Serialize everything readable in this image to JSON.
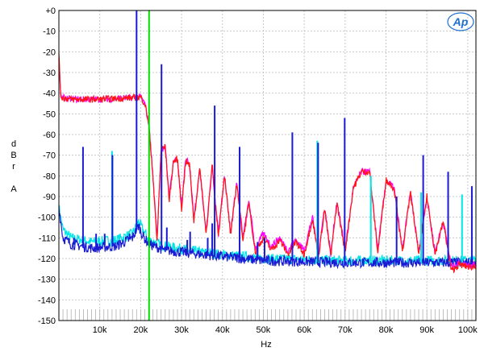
{
  "chart_data": {
    "type": "line",
    "title": "",
    "xlabel": "Hz",
    "ylabel_lines": [
      "d",
      "B",
      "r",
      "",
      "A"
    ],
    "xlim": [
      0,
      102000
    ],
    "ylim": [
      -150,
      0
    ],
    "grid": true,
    "y_ticks": [
      0,
      -10,
      -20,
      -30,
      -40,
      -50,
      -60,
      -70,
      -80,
      -90,
      -100,
      -110,
      -120,
      -130,
      -140,
      -150
    ],
    "y_tick_labels": [
      "+0",
      "-10",
      "-20",
      "-30",
      "-40",
      "-50",
      "-60",
      "-70",
      "-80",
      "-90",
      "-100",
      "-110",
      "-120",
      "-130",
      "-140",
      "-150"
    ],
    "x_ticks": [
      10000,
      20000,
      30000,
      40000,
      50000,
      60000,
      70000,
      80000,
      90000,
      100000
    ],
    "x_tick_labels": [
      "10k",
      "20k",
      "30k",
      "40k",
      "50k",
      "60k",
      "70k",
      "80k",
      "90k",
      "100k"
    ],
    "marker_x": 22050,
    "marker_color": "#00dd00",
    "logo_text": "Ap",
    "series": [
      {
        "color": "#00e5e5",
        "points": [
          [
            0,
            -95
          ],
          [
            1000,
            -106
          ],
          [
            3000,
            -110
          ],
          [
            8000,
            -112
          ],
          [
            14000,
            -111
          ],
          [
            18000,
            -108
          ],
          [
            19500,
            -102
          ],
          [
            20500,
            -106
          ],
          [
            22000,
            -111
          ],
          [
            26000,
            -114
          ],
          [
            35000,
            -117
          ],
          [
            50000,
            -120
          ],
          [
            70000,
            -121
          ],
          [
            102000,
            -121
          ]
        ]
      },
      {
        "color": "#1a1ad6",
        "points": [
          [
            0,
            -95
          ],
          [
            1000,
            -110
          ],
          [
            3000,
            -113
          ],
          [
            8000,
            -115
          ],
          [
            14000,
            -114
          ],
          [
            18000,
            -110
          ],
          [
            19500,
            -104
          ],
          [
            20500,
            -109
          ],
          [
            22000,
            -113
          ],
          [
            26000,
            -116
          ],
          [
            35000,
            -118
          ],
          [
            50000,
            -121
          ],
          [
            70000,
            -122
          ],
          [
            102000,
            -122
          ]
        ]
      },
      {
        "color": "#ff00ff",
        "points": [
          [
            0,
            -24
          ],
          [
            500,
            -42
          ],
          [
            3000,
            -43
          ],
          [
            10000,
            -43
          ],
          [
            20000,
            -42
          ],
          [
            21000,
            -45
          ],
          [
            22000,
            -55
          ],
          [
            23000,
            -80
          ],
          [
            24000,
            -110
          ],
          [
            25000,
            -68
          ],
          [
            26000,
            -66
          ],
          [
            27000,
            -90
          ],
          [
            28000,
            -73
          ],
          [
            29000,
            -72
          ],
          [
            30000,
            -95
          ],
          [
            31000,
            -72
          ],
          [
            32000,
            -75
          ],
          [
            33000,
            -100
          ],
          [
            34500,
            -77
          ],
          [
            36000,
            -107
          ],
          [
            37500,
            -76
          ],
          [
            39000,
            -108
          ],
          [
            40500,
            -79
          ],
          [
            42000,
            -108
          ],
          [
            43500,
            -83
          ],
          [
            45000,
            -110
          ],
          [
            46500,
            -92
          ],
          [
            48000,
            -115
          ],
          [
            50000,
            -108
          ],
          [
            52000,
            -114
          ],
          [
            54000,
            -110
          ],
          [
            56000,
            -116
          ],
          [
            58000,
            -111
          ],
          [
            60000,
            -116
          ],
          [
            62000,
            -100
          ],
          [
            63500,
            -118
          ],
          [
            65000,
            -95
          ],
          [
            66500,
            -118
          ],
          [
            68000,
            -92
          ],
          [
            70000,
            -116
          ],
          [
            72000,
            -86
          ],
          [
            74000,
            -78
          ],
          [
            76000,
            -78
          ],
          [
            78000,
            -116
          ],
          [
            80000,
            -82
          ],
          [
            82000,
            -86
          ],
          [
            84000,
            -116
          ],
          [
            86000,
            -88
          ],
          [
            88000,
            -117
          ],
          [
            90000,
            -90
          ],
          [
            92000,
            -117
          ],
          [
            94000,
            -102
          ],
          [
            96000,
            -124
          ],
          [
            98000,
            -122
          ],
          [
            100000,
            -123
          ],
          [
            102000,
            -123
          ]
        ]
      },
      {
        "color": "#ff1515",
        "points": [
          [
            0,
            -22
          ],
          [
            500,
            -42
          ],
          [
            3000,
            -43
          ],
          [
            10000,
            -43
          ],
          [
            20000,
            -42
          ],
          [
            21000,
            -45
          ],
          [
            22000,
            -55
          ],
          [
            23000,
            -80
          ],
          [
            24000,
            -112
          ],
          [
            25000,
            -67
          ],
          [
            26000,
            -66
          ],
          [
            27000,
            -92
          ],
          [
            28000,
            -73
          ],
          [
            29000,
            -72
          ],
          [
            30000,
            -96
          ],
          [
            31000,
            -73
          ],
          [
            32000,
            -75
          ],
          [
            33000,
            -102
          ],
          [
            34500,
            -76
          ],
          [
            36000,
            -108
          ],
          [
            37500,
            -75
          ],
          [
            39000,
            -109
          ],
          [
            40500,
            -79
          ],
          [
            42000,
            -109
          ],
          [
            43500,
            -83
          ],
          [
            45000,
            -111
          ],
          [
            46500,
            -93
          ],
          [
            48000,
            -117
          ],
          [
            50000,
            -110
          ],
          [
            52000,
            -116
          ],
          [
            54000,
            -111
          ],
          [
            56000,
            -118
          ],
          [
            58000,
            -112
          ],
          [
            60000,
            -118
          ],
          [
            62000,
            -101
          ],
          [
            63500,
            -119
          ],
          [
            65000,
            -96
          ],
          [
            66500,
            -119
          ],
          [
            68000,
            -93
          ],
          [
            70000,
            -117
          ],
          [
            72000,
            -86
          ],
          [
            74000,
            -78
          ],
          [
            76000,
            -78
          ],
          [
            78000,
            -117
          ],
          [
            80000,
            -82
          ],
          [
            82000,
            -86
          ],
          [
            84000,
            -117
          ],
          [
            86000,
            -88
          ],
          [
            88000,
            -118
          ],
          [
            90000,
            -90
          ],
          [
            92000,
            -118
          ],
          [
            94000,
            -102
          ],
          [
            96000,
            -126
          ],
          [
            98000,
            -123
          ],
          [
            100000,
            -124
          ],
          [
            102000,
            -124
          ]
        ]
      }
    ],
    "spikes": [
      {
        "x": 3700,
        "y": -110,
        "color": "#1a1ad6"
      },
      {
        "x": 5900,
        "y": -66,
        "color": "#1a1ad6"
      },
      {
        "x": 9100,
        "y": -108,
        "color": "#1a1ad6"
      },
      {
        "x": 11200,
        "y": -108,
        "color": "#1a1ad6"
      },
      {
        "x": 13000,
        "y": -68,
        "color": "#00e5e5"
      },
      {
        "x": 13100,
        "y": -70,
        "color": "#1a1ad6"
      },
      {
        "x": 17300,
        "y": -108,
        "color": "#1a1ad6"
      },
      {
        "x": 19000,
        "y": 0,
        "color": "#1a1ad6"
      },
      {
        "x": 25100,
        "y": -26,
        "color": "#1a1ad6"
      },
      {
        "x": 26400,
        "y": -105,
        "color": "#1a1ad6"
      },
      {
        "x": 31400,
        "y": -111,
        "color": "#1a1ad6"
      },
      {
        "x": 32100,
        "y": -107,
        "color": "#1a1ad6"
      },
      {
        "x": 36400,
        "y": -110,
        "color": "#1a1ad6"
      },
      {
        "x": 37500,
        "y": -103,
        "color": "#1a1ad6"
      },
      {
        "x": 38100,
        "y": -46,
        "color": "#1a1ad6"
      },
      {
        "x": 44200,
        "y": -66,
        "color": "#1a1ad6"
      },
      {
        "x": 48600,
        "y": -112,
        "color": "#1a1ad6"
      },
      {
        "x": 50300,
        "y": -110,
        "color": "#1a1ad6"
      },
      {
        "x": 57100,
        "y": -59,
        "color": "#1a1ad6"
      },
      {
        "x": 63200,
        "y": -63,
        "color": "#00e5e5"
      },
      {
        "x": 63400,
        "y": -64,
        "color": "#1a1ad6"
      },
      {
        "x": 69900,
        "y": -52,
        "color": "#1a1ad6"
      },
      {
        "x": 76300,
        "y": -80,
        "color": "#00e5e5"
      },
      {
        "x": 82600,
        "y": -90,
        "color": "#1a1ad6"
      },
      {
        "x": 88600,
        "y": -88,
        "color": "#00e5e5"
      },
      {
        "x": 89100,
        "y": -70,
        "color": "#1a1ad6"
      },
      {
        "x": 95200,
        "y": -78,
        "color": "#1a1ad6"
      },
      {
        "x": 98600,
        "y": -89,
        "color": "#00e5e5"
      },
      {
        "x": 101000,
        "y": -85,
        "color": "#1a1ad6"
      }
    ]
  }
}
